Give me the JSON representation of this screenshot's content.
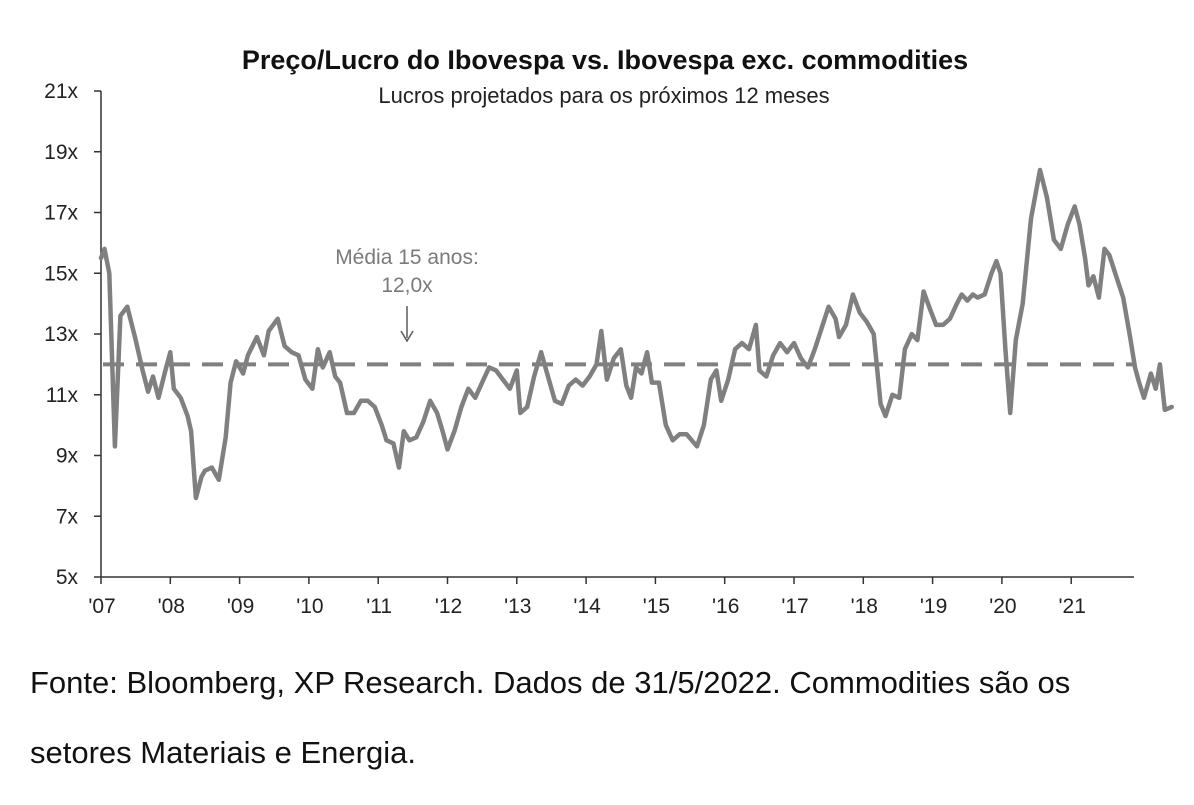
{
  "chart_data": {
    "type": "line",
    "title": "Preço/Lucro do Ibovespa vs. Ibovespa exc. commodities",
    "subtitle": "Lucros projetados para os próximos 12 meses",
    "xlabel": "",
    "ylabel": "",
    "xlim": [
      2007.0,
      2022.0
    ],
    "ylim": [
      5,
      21
    ],
    "y_ticks": [
      {
        "value": 5,
        "label": "5x"
      },
      {
        "value": 7,
        "label": "7x"
      },
      {
        "value": 9,
        "label": "9x"
      },
      {
        "value": 11,
        "label": "11x"
      },
      {
        "value": 13,
        "label": "13x"
      },
      {
        "value": 15,
        "label": "15x"
      },
      {
        "value": 17,
        "label": "17x"
      },
      {
        "value": 19,
        "label": "19x"
      },
      {
        "value": 21,
        "label": "21x"
      }
    ],
    "x_ticks": [
      {
        "value": 2007,
        "label": "'07"
      },
      {
        "value": 2008,
        "label": "'08"
      },
      {
        "value": 2009,
        "label": "'09"
      },
      {
        "value": 2010,
        "label": "'10"
      },
      {
        "value": 2011,
        "label": "'11"
      },
      {
        "value": 2012,
        "label": "'12"
      },
      {
        "value": 2013,
        "label": "'13"
      },
      {
        "value": 2014,
        "label": "'14"
      },
      {
        "value": 2015,
        "label": "'15"
      },
      {
        "value": 2016,
        "label": "'16"
      },
      {
        "value": 2017,
        "label": "'17"
      },
      {
        "value": 2018,
        "label": "'18"
      },
      {
        "value": 2019,
        "label": "'19"
      },
      {
        "value": 2020,
        "label": "'20"
      },
      {
        "value": 2021,
        "label": "'21"
      }
    ],
    "grid": false,
    "series": [
      {
        "color": "#808080",
        "points": [
          [
            2007.0,
            15.5
          ],
          [
            2007.05,
            15.8
          ],
          [
            2007.12,
            15.0
          ],
          [
            2007.2,
            9.3
          ],
          [
            2007.28,
            13.6
          ],
          [
            2007.38,
            13.9
          ],
          [
            2007.5,
            12.8
          ],
          [
            2007.6,
            11.8
          ],
          [
            2007.68,
            11.1
          ],
          [
            2007.75,
            11.6
          ],
          [
            2007.83,
            10.9
          ],
          [
            2007.93,
            11.8
          ],
          [
            2008.0,
            12.4
          ],
          [
            2008.05,
            11.2
          ],
          [
            2008.15,
            10.9
          ],
          [
            2008.25,
            10.3
          ],
          [
            2008.3,
            9.8
          ],
          [
            2008.37,
            7.6
          ],
          [
            2008.45,
            8.3
          ],
          [
            2008.5,
            8.5
          ],
          [
            2008.6,
            8.6
          ],
          [
            2008.7,
            8.2
          ],
          [
            2008.8,
            9.6
          ],
          [
            2008.87,
            11.4
          ],
          [
            2008.95,
            12.1
          ],
          [
            2009.05,
            11.7
          ],
          [
            2009.12,
            12.3
          ],
          [
            2009.25,
            12.9
          ],
          [
            2009.35,
            12.3
          ],
          [
            2009.42,
            13.1
          ],
          [
            2009.55,
            13.5
          ],
          [
            2009.65,
            12.6
          ],
          [
            2009.75,
            12.4
          ],
          [
            2009.85,
            12.3
          ],
          [
            2009.95,
            11.5
          ],
          [
            2010.05,
            11.2
          ],
          [
            2010.13,
            12.5
          ],
          [
            2010.2,
            11.9
          ],
          [
            2010.3,
            12.4
          ],
          [
            2010.38,
            11.6
          ],
          [
            2010.45,
            11.4
          ],
          [
            2010.55,
            10.4
          ],
          [
            2010.65,
            10.4
          ],
          [
            2010.75,
            10.8
          ],
          [
            2010.85,
            10.8
          ],
          [
            2010.95,
            10.6
          ],
          [
            2011.05,
            10.0
          ],
          [
            2011.12,
            9.5
          ],
          [
            2011.22,
            9.4
          ],
          [
            2011.3,
            8.6
          ],
          [
            2011.37,
            9.8
          ],
          [
            2011.45,
            9.5
          ],
          [
            2011.55,
            9.6
          ],
          [
            2011.65,
            10.1
          ],
          [
            2011.75,
            10.8
          ],
          [
            2011.85,
            10.4
          ],
          [
            2011.93,
            9.8
          ],
          [
            2012.0,
            9.2
          ],
          [
            2012.1,
            9.8
          ],
          [
            2012.2,
            10.6
          ],
          [
            2012.3,
            11.2
          ],
          [
            2012.4,
            10.9
          ],
          [
            2012.5,
            11.4
          ],
          [
            2012.6,
            11.9
          ],
          [
            2012.7,
            11.8
          ],
          [
            2012.8,
            11.5
          ],
          [
            2012.9,
            11.2
          ],
          [
            2013.0,
            11.8
          ],
          [
            2013.05,
            10.4
          ],
          [
            2013.15,
            10.6
          ],
          [
            2013.25,
            11.6
          ],
          [
            2013.35,
            12.4
          ],
          [
            2013.45,
            11.6
          ],
          [
            2013.55,
            10.8
          ],
          [
            2013.65,
            10.7
          ],
          [
            2013.75,
            11.3
          ],
          [
            2013.85,
            11.5
          ],
          [
            2013.95,
            11.3
          ],
          [
            2014.05,
            11.6
          ],
          [
            2014.15,
            12.0
          ],
          [
            2014.22,
            13.1
          ],
          [
            2014.3,
            11.5
          ],
          [
            2014.4,
            12.2
          ],
          [
            2014.5,
            12.5
          ],
          [
            2014.58,
            11.3
          ],
          [
            2014.65,
            10.9
          ],
          [
            2014.72,
            11.9
          ],
          [
            2014.8,
            11.7
          ],
          [
            2014.88,
            12.4
          ],
          [
            2014.95,
            11.4
          ],
          [
            2015.05,
            11.4
          ],
          [
            2015.15,
            10.0
          ],
          [
            2015.25,
            9.5
          ],
          [
            2015.35,
            9.7
          ],
          [
            2015.45,
            9.7
          ],
          [
            2015.6,
            9.3
          ],
          [
            2015.7,
            10.0
          ],
          [
            2015.8,
            11.5
          ],
          [
            2015.88,
            11.8
          ],
          [
            2015.95,
            10.8
          ],
          [
            2016.05,
            11.5
          ],
          [
            2016.15,
            12.5
          ],
          [
            2016.25,
            12.7
          ],
          [
            2016.35,
            12.5
          ],
          [
            2016.45,
            13.3
          ],
          [
            2016.5,
            11.8
          ],
          [
            2016.6,
            11.6
          ],
          [
            2016.7,
            12.3
          ],
          [
            2016.8,
            12.7
          ],
          [
            2016.9,
            12.4
          ],
          [
            2017.0,
            12.7
          ],
          [
            2017.1,
            12.2
          ],
          [
            2017.2,
            11.9
          ],
          [
            2017.3,
            12.5
          ],
          [
            2017.4,
            13.2
          ],
          [
            2017.5,
            13.9
          ],
          [
            2017.6,
            13.5
          ],
          [
            2017.65,
            12.9
          ],
          [
            2017.75,
            13.3
          ],
          [
            2017.85,
            14.3
          ],
          [
            2017.95,
            13.7
          ],
          [
            2018.05,
            13.4
          ],
          [
            2018.15,
            13.0
          ],
          [
            2018.25,
            10.7
          ],
          [
            2018.32,
            10.3
          ],
          [
            2018.42,
            11.0
          ],
          [
            2018.52,
            10.9
          ],
          [
            2018.6,
            12.5
          ],
          [
            2018.7,
            13.0
          ],
          [
            2018.78,
            12.8
          ],
          [
            2018.87,
            14.4
          ],
          [
            2018.95,
            13.9
          ],
          [
            2019.05,
            13.3
          ],
          [
            2019.15,
            13.3
          ],
          [
            2019.25,
            13.5
          ],
          [
            2019.35,
            14.0
          ],
          [
            2019.42,
            14.3
          ],
          [
            2019.5,
            14.1
          ],
          [
            2019.58,
            14.3
          ],
          [
            2019.65,
            14.2
          ],
          [
            2019.75,
            14.3
          ],
          [
            2019.85,
            15.0
          ],
          [
            2019.92,
            15.4
          ],
          [
            2019.98,
            15.0
          ],
          [
            2020.05,
            12.5
          ],
          [
            2020.12,
            10.4
          ],
          [
            2020.2,
            12.8
          ],
          [
            2020.3,
            14.0
          ],
          [
            2020.42,
            16.8
          ],
          [
            2020.55,
            18.4
          ],
          [
            2020.65,
            17.5
          ],
          [
            2020.75,
            16.1
          ],
          [
            2020.85,
            15.8
          ],
          [
            2020.95,
            16.6
          ],
          [
            2021.05,
            17.2
          ],
          [
            2021.12,
            16.6
          ],
          [
            2021.2,
            15.5
          ],
          [
            2021.25,
            14.6
          ],
          [
            2021.32,
            14.9
          ],
          [
            2021.4,
            14.2
          ],
          [
            2021.48,
            15.8
          ],
          [
            2021.55,
            15.6
          ],
          [
            2021.65,
            14.9
          ],
          [
            2021.75,
            14.2
          ],
          [
            2021.85,
            12.9
          ],
          [
            2021.92,
            11.9
          ],
          [
            2021.98,
            11.4
          ],
          [
            2022.05,
            10.9
          ],
          [
            2022.15,
            11.7
          ],
          [
            2022.22,
            11.2
          ],
          [
            2022.28,
            12.0
          ],
          [
            2022.35,
            10.5
          ],
          [
            2022.45,
            10.6
          ]
        ]
      }
    ],
    "reference_line": {
      "value": 12.0,
      "style": "dashed",
      "color": "#808080"
    },
    "annotation": {
      "lines": [
        "Média 15 anos:",
        "12,0x"
      ],
      "x": 2011.4,
      "color": "#7a7a7a"
    }
  },
  "caption": "Fonte: Bloomberg, XP Research. Dados de 31/5/2022. Commodities são os setores Materiais e Energia."
}
